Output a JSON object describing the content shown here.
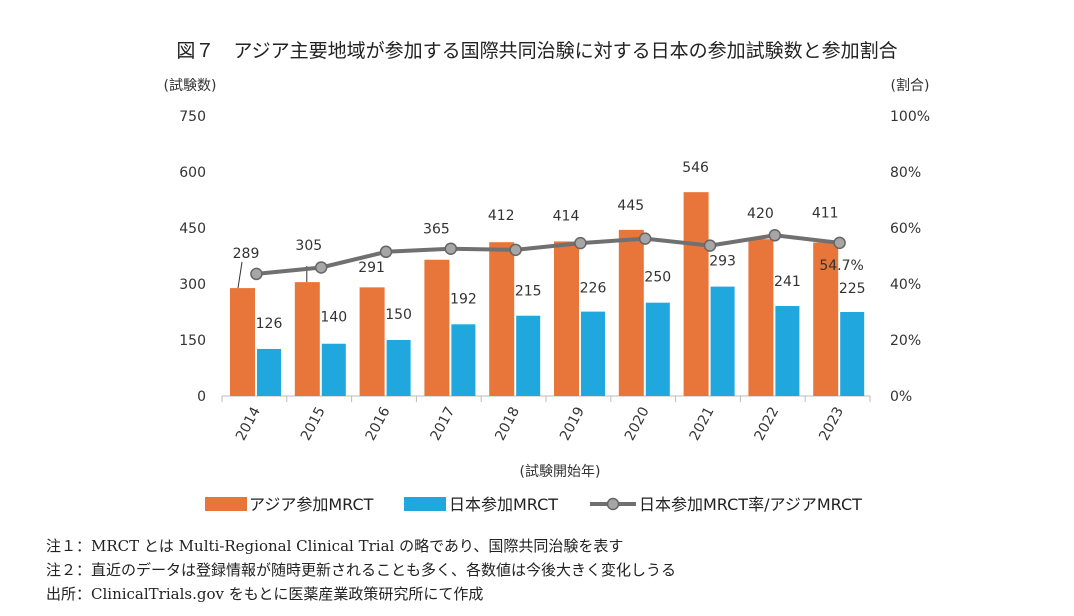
{
  "title": "図７　アジア主要地域が参加する国際共同治験に対する日本の参加試験数と参加割合",
  "notes": [
    "注１：MRCT とは Multi-Regional Clinical Trial の略であり、国際共同治験を表す",
    "注２：直近のデータは登録情報が随時更新されることも多く、各数値は今後大きく変化しうる",
    "出所：ClinicalTrials.gov をもとに医薬産業政策研究所にて作成"
  ],
  "chart_data": {
    "type": "bar",
    "xlabel": "(試験開始年)",
    "ylabel": "(試験数)",
    "y2label": "(割合)",
    "categories": [
      "2014",
      "2015",
      "2016",
      "2017",
      "2018",
      "2019",
      "2020",
      "2021",
      "2022",
      "2023"
    ],
    "ylim": [
      0,
      750
    ],
    "yticks": [
      "0",
      "150",
      "300",
      "450",
      "600",
      "750"
    ],
    "y2lim": [
      0,
      100
    ],
    "y2ticks": [
      "0%",
      "20%",
      "40%",
      "60%",
      "80%",
      "100%"
    ],
    "grid": false,
    "legend_position": "bottom",
    "series": [
      {
        "name": "アジア参加MRCT",
        "type": "bar",
        "axis": "left",
        "color": "#E8763A",
        "values": [
          289,
          305,
          291,
          365,
          412,
          414,
          445,
          546,
          420,
          411
        ]
      },
      {
        "name": "日本参加MRCT",
        "type": "bar",
        "axis": "left",
        "color": "#1FA7DE",
        "values": [
          126,
          140,
          150,
          192,
          215,
          226,
          250,
          293,
          241,
          225
        ]
      },
      {
        "name": "日本参加MRCT率/アジアMRCT",
        "type": "line",
        "axis": "right",
        "color": "#707070",
        "marker_color": "#A6A6A6",
        "values": [
          43.6,
          45.9,
          51.5,
          52.6,
          52.2,
          54.6,
          56.2,
          53.7,
          57.4,
          54.7
        ],
        "labeled_point": {
          "index": 9,
          "label": "54.7%"
        }
      }
    ]
  }
}
